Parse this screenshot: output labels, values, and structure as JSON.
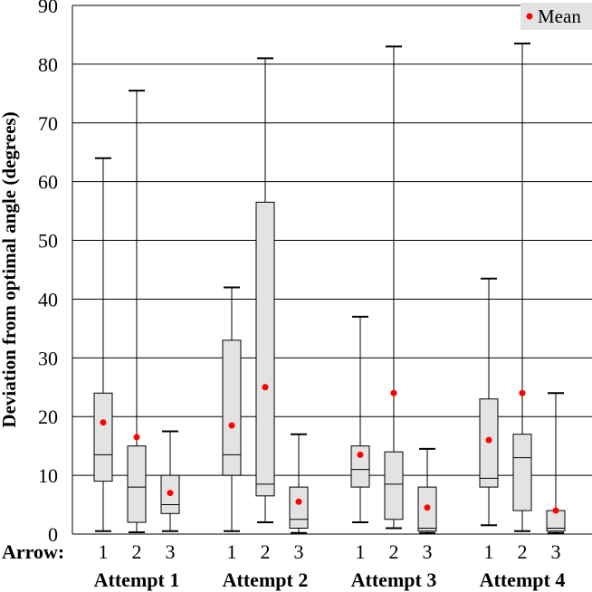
{
  "chart_data": {
    "type": "boxplot",
    "title": "",
    "ylabel": "Deviation from optimal angle (degrees)",
    "xlabel_prefix": "Arrow:",
    "ylim": [
      0,
      90
    ],
    "yticks": [
      0,
      10,
      20,
      30,
      40,
      50,
      60,
      70,
      80,
      90
    ],
    "grid": "horizontal",
    "legend": {
      "label": "Mean",
      "position": "top-right"
    },
    "colors": {
      "box_fill": "#e3e3e3",
      "mean_marker": "#ff0000",
      "line": "#000000"
    },
    "groups": [
      {
        "name": "Attempt 1",
        "boxes": [
          {
            "arrow": "1",
            "min": 0.5,
            "q1": 9,
            "median": 13.5,
            "q3": 24,
            "max": 64,
            "mean": 19
          },
          {
            "arrow": "2",
            "min": 0.3,
            "q1": 2,
            "median": 8,
            "q3": 15,
            "max": 75.5,
            "mean": 16.5
          },
          {
            "arrow": "3",
            "min": 0.5,
            "q1": 3.5,
            "median": 5,
            "q3": 10,
            "max": 17.5,
            "mean": 7
          }
        ]
      },
      {
        "name": "Attempt 2",
        "boxes": [
          {
            "arrow": "1",
            "min": 0.5,
            "q1": 10,
            "median": 13.5,
            "q3": 33,
            "max": 42,
            "mean": 18.5
          },
          {
            "arrow": "2",
            "min": 2,
            "q1": 6.5,
            "median": 8.5,
            "q3": 56.5,
            "max": 81,
            "mean": 25
          },
          {
            "arrow": "3",
            "min": 0.2,
            "q1": 1,
            "median": 2.5,
            "q3": 8,
            "max": 17,
            "mean": 5.5
          }
        ]
      },
      {
        "name": "Attempt 3",
        "boxes": [
          {
            "arrow": "1",
            "min": 2,
            "q1": 8,
            "median": 11,
            "q3": 15,
            "max": 37,
            "mean": 13.5
          },
          {
            "arrow": "2",
            "min": 1,
            "q1": 2.5,
            "median": 8.5,
            "q3": 14,
            "max": 83,
            "mean": 24
          },
          {
            "arrow": "3",
            "min": 0.2,
            "q1": 0.5,
            "median": 1,
            "q3": 8,
            "max": 14.5,
            "mean": 4.5
          }
        ]
      },
      {
        "name": "Attempt 4",
        "boxes": [
          {
            "arrow": "1",
            "min": 1.5,
            "q1": 8,
            "median": 9.5,
            "q3": 23,
            "max": 43.5,
            "mean": 16
          },
          {
            "arrow": "2",
            "min": 0.5,
            "q1": 4,
            "median": 13,
            "q3": 17,
            "max": 83.5,
            "mean": 24
          },
          {
            "arrow": "3",
            "min": 0.2,
            "q1": 0.5,
            "median": 1,
            "q3": 4,
            "max": 24,
            "mean": 4
          }
        ]
      }
    ]
  }
}
